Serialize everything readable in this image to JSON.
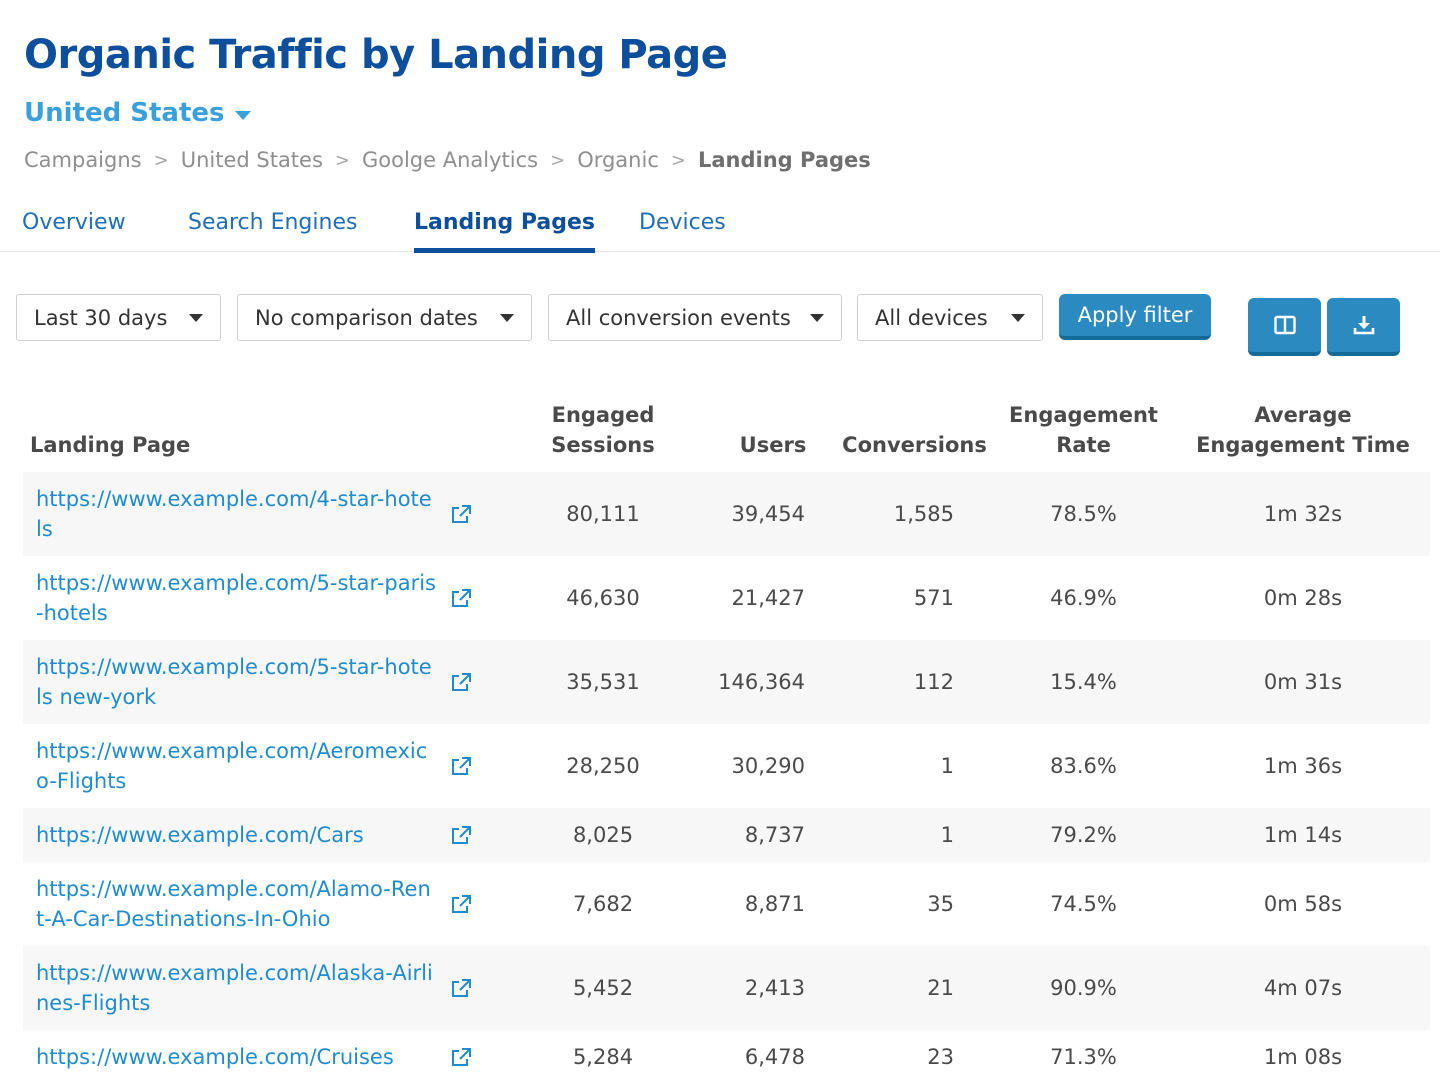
{
  "page": {
    "title": "Organic Traffic by Landing Page",
    "country": "United States"
  },
  "breadcrumb": [
    "Campaigns",
    "United States",
    "Goolge Analytics",
    "Organic",
    "Landing Pages"
  ],
  "breadcrumb_separator": ">",
  "tabs": [
    {
      "label": "Overview",
      "active": false
    },
    {
      "label": "Search Engines",
      "active": false
    },
    {
      "label": "Landing Pages",
      "active": true
    },
    {
      "label": "Devices",
      "active": false
    }
  ],
  "filters": {
    "date_range": "Last 30 days",
    "comparison": "No comparison dates",
    "conversion": "All conversion events",
    "devices": "All devices",
    "apply_label": "Apply filter"
  },
  "toolbar_icons": [
    "columns-icon",
    "download-icon"
  ],
  "table": {
    "headers": {
      "landing_page": "Landing Page",
      "engaged_sessions_1": "Engaged",
      "engaged_sessions_2": "Sessions",
      "users": "Users",
      "conversions": "Conversions",
      "engagement_rate_1": "Engagement",
      "engagement_rate_2": "Rate",
      "avg_time_1": "Average",
      "avg_time_2": "Engagement Time"
    },
    "rows": [
      {
        "url": "https://www.example.com/4-star-hotels",
        "engaged_sessions": "80,111",
        "users": "39,454",
        "conversions": "1,585",
        "engagement_rate": "78.5%",
        "avg_time": "1m 32s"
      },
      {
        "url": "https://www.example.com/5-star-paris-hotels",
        "engaged_sessions": "46,630",
        "users": "21,427",
        "conversions": "571",
        "engagement_rate": "46.9%",
        "avg_time": "0m 28s"
      },
      {
        "url": "https://www.example.com/5-star-hotels new-york",
        "engaged_sessions": "35,531",
        "users": "146,364",
        "conversions": "112",
        "engagement_rate": "15.4%",
        "avg_time": "0m 31s"
      },
      {
        "url": "https://www.example.com/Aeromexico-Flights",
        "engaged_sessions": "28,250",
        "users": "30,290",
        "conversions": "1",
        "engagement_rate": "83.6%",
        "avg_time": "1m 36s"
      },
      {
        "url": "https://www.example.com/Cars",
        "engaged_sessions": "8,025",
        "users": "8,737",
        "conversions": "1",
        "engagement_rate": "79.2%",
        "avg_time": "1m 14s"
      },
      {
        "url": "https://www.example.com/Alamo-Rent-A-Car-Destinations-In-Ohio",
        "engaged_sessions": "7,682",
        "users": "8,871",
        "conversions": "35",
        "engagement_rate": "74.5%",
        "avg_time": "0m 58s"
      },
      {
        "url": "https://www.example.com/Alaska-Airlines-Flights",
        "engaged_sessions": "5,452",
        "users": "2,413",
        "conversions": "21",
        "engagement_rate": "90.9%",
        "avg_time": "4m 07s"
      },
      {
        "url": "https://www.example.com/Cruises",
        "engaged_sessions": "5,284",
        "users": "6,478",
        "conversions": "23",
        "engagement_rate": "71.3%",
        "avg_time": "1m 08s"
      }
    ]
  },
  "colors": {
    "title": "#0d4f9c",
    "accent": "#3aa0dc",
    "link": "#1f8ccf",
    "button": "#2b8ac0",
    "row_alt": "#f7f7f7"
  }
}
